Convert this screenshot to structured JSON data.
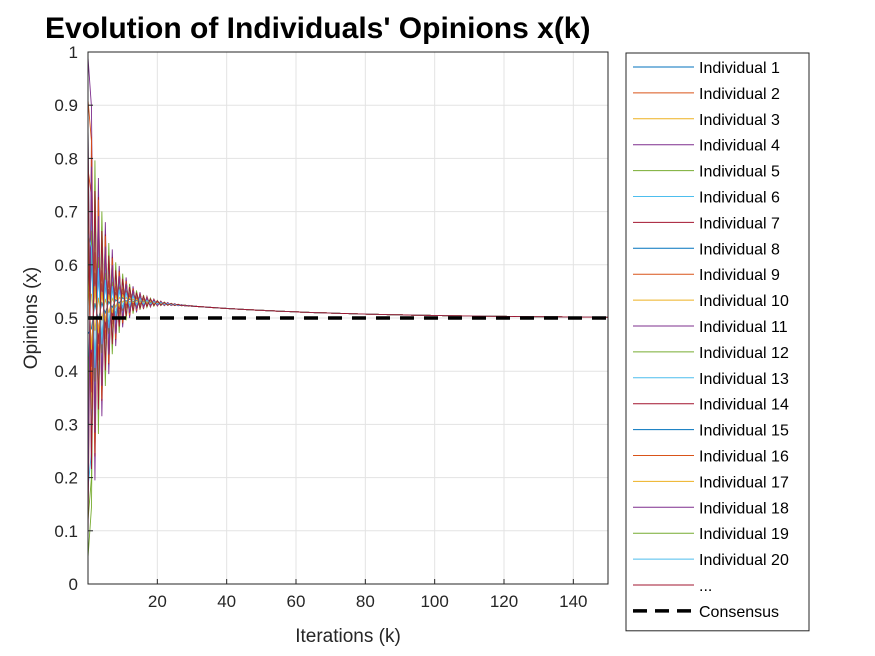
{
  "chart_data": {
    "type": "line",
    "title": "Evolution of Individuals' Opinions x(k)",
    "xlabel": "Iterations (k)",
    "ylabel": "Opinions (x)",
    "xlim": [
      0,
      150
    ],
    "ylim": [
      0,
      1
    ],
    "x_ticks": [
      20,
      40,
      60,
      80,
      100,
      120,
      140
    ],
    "y_ticks": [
      0,
      0.1,
      0.2,
      0.3,
      0.4,
      0.5,
      0.6,
      0.7,
      0.8,
      0.9,
      1
    ],
    "grid": true,
    "legend_position": "outside-right",
    "consensus_value": 0.5,
    "individual_initial_opinions": [
      0.86,
      0.78,
      0.72,
      0.99,
      0.12,
      0.24,
      0.62,
      0.35,
      0.68,
      0.55,
      0.42,
      0.3,
      0.18,
      0.08,
      0.47,
      0.91,
      0.58,
      0.15,
      0.05,
      0.66
    ],
    "series": [
      {
        "name": "Individual 1",
        "color": "#0072BD"
      },
      {
        "name": "Individual 2",
        "color": "#D95319"
      },
      {
        "name": "Individual 3",
        "color": "#EDB120"
      },
      {
        "name": "Individual 4",
        "color": "#7E2F8E"
      },
      {
        "name": "Individual 5",
        "color": "#77AC30"
      },
      {
        "name": "Individual 6",
        "color": "#4DBEEE"
      },
      {
        "name": "Individual 7",
        "color": "#A2142F"
      },
      {
        "name": "Individual 8",
        "color": "#0072BD"
      },
      {
        "name": "Individual 9",
        "color": "#D95319"
      },
      {
        "name": "Individual 10",
        "color": "#EDB120"
      },
      {
        "name": "Individual 11",
        "color": "#7E2F8E"
      },
      {
        "name": "Individual 12",
        "color": "#77AC30"
      },
      {
        "name": "Individual 13",
        "color": "#4DBEEE"
      },
      {
        "name": "Individual 14",
        "color": "#A2142F"
      },
      {
        "name": "Individual 15",
        "color": "#0072BD"
      },
      {
        "name": "Individual 16",
        "color": "#D95319"
      },
      {
        "name": "Individual 17",
        "color": "#EDB120"
      },
      {
        "name": "Individual 18",
        "color": "#7E2F8E"
      },
      {
        "name": "Individual 19",
        "color": "#77AC30"
      },
      {
        "name": "Individual 20",
        "color": "#4DBEEE"
      },
      {
        "name": "...",
        "color": "#A2142F"
      },
      {
        "name": "Consensus",
        "color": "#000000",
        "style": "dashed"
      }
    ]
  }
}
